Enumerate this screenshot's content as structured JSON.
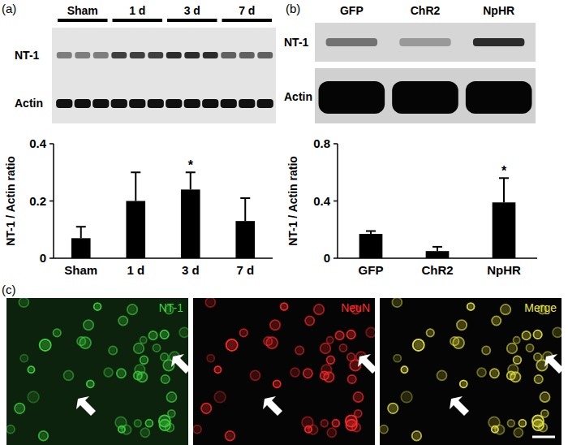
{
  "chart_data": [
    {
      "type": "bar",
      "categories": [
        "Sham",
        "1 d",
        "3 d",
        "7 d"
      ],
      "values": [
        0.07,
        0.2,
        0.24,
        0.13
      ],
      "errors": [
        0.04,
        0.1,
        0.06,
        0.08
      ],
      "y_label": "NT-1 / Actin ratio",
      "ylim": [
        0,
        0.4
      ],
      "yticks": [
        0,
        0.2,
        0.4
      ],
      "color": "#000000",
      "annotations": [
        {
          "text": "*",
          "category": "3 d"
        }
      ]
    },
    {
      "type": "bar",
      "categories": [
        "GFP",
        "ChR2",
        "NpHR"
      ],
      "values": [
        0.17,
        0.05,
        0.39
      ],
      "errors": [
        0.02,
        0.03,
        0.17
      ],
      "y_label": "NT-1 / Actin ratio",
      "ylim": [
        0,
        0.8
      ],
      "yticks": [
        0,
        0.4,
        0.8
      ],
      "color": "#000000",
      "annotations": [
        {
          "text": "*",
          "category": "NpHR"
        }
      ]
    }
  ],
  "panel_labels": [
    "(a)",
    "(b)",
    "(c)"
  ],
  "blots": [
    {
      "lane_groups": [
        "Sham",
        "1 d",
        "3 d",
        "7 d"
      ],
      "rows": [
        "NT-1",
        "Actin"
      ]
    },
    {
      "lanes": [
        "GFP",
        "ChR2",
        "NpHR"
      ],
      "rows": [
        "NT-1",
        "Actin"
      ]
    }
  ],
  "images": [
    {
      "label": "NT-1",
      "color": "#3fd23f"
    },
    {
      "label": "NeuN",
      "color": "#ff2a2a"
    },
    {
      "label": "Merge",
      "color": "#e8e640"
    }
  ]
}
